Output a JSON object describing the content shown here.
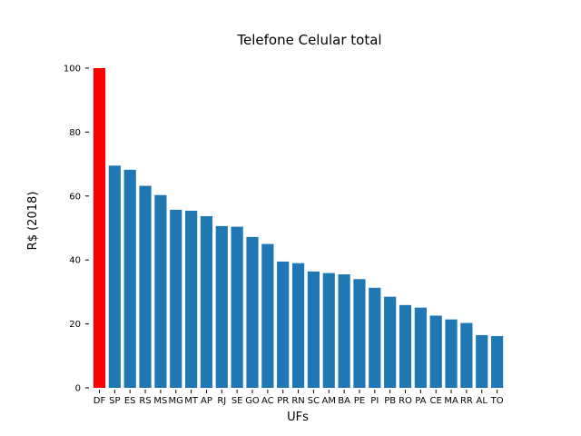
{
  "chart_data": {
    "type": "bar",
    "title": "Telefone Celular total",
    "xlabel": "UFs",
    "ylabel": "R$ (2018)",
    "ylim": [
      0,
      100
    ],
    "yticks": [
      "0",
      "20",
      "40",
      "60",
      "80",
      "100"
    ],
    "grid": false,
    "categories": [
      "DF",
      "SP",
      "ES",
      "RS",
      "MS",
      "MG",
      "MT",
      "AP",
      "RJ",
      "SE",
      "GO",
      "AC",
      "PR",
      "RN",
      "SC",
      "AM",
      "BA",
      "PE",
      "PI",
      "PB",
      "RO",
      "PA",
      "CE",
      "MA",
      "RR",
      "AL",
      "TO"
    ],
    "values": [
      100,
      69.5,
      68.2,
      63.2,
      60.3,
      55.7,
      55.4,
      53.7,
      50.6,
      50.4,
      47.2,
      45.0,
      39.5,
      39.0,
      36.4,
      35.9,
      35.5,
      34.0,
      31.3,
      28.5,
      25.9,
      25.1,
      22.6,
      21.4,
      20.3,
      16.5,
      16.2
    ],
    "colors": {
      "default": "#1f77b4",
      "highlight": "#ff0000"
    },
    "highlight_category": "DF"
  }
}
